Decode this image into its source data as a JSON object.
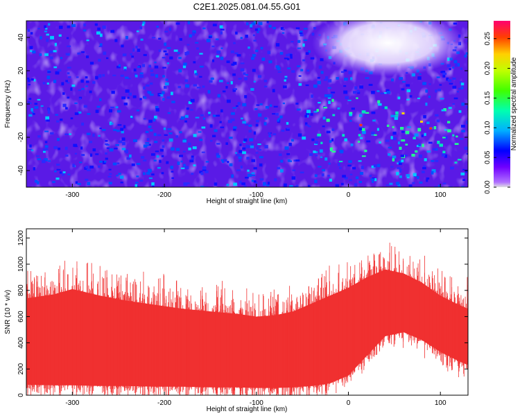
{
  "title": "C2E1.2025.081.04.55.G01",
  "chart_data": [
    {
      "type": "heatmap",
      "xlabel": "Height of straight line (km)",
      "ylabel": "Frequency (Hz)",
      "xlim": [
        -350,
        130
      ],
      "ylim": [
        -50,
        50
      ],
      "xticks": [
        -300,
        -200,
        -100,
        0,
        100
      ],
      "yticks": [
        -40,
        -20,
        0,
        20,
        40
      ],
      "colorbar": {
        "label": "Normalized spectral amplitude",
        "range": [
          0,
          0.28
        ],
        "ticks": [
          0.0,
          0.05,
          0.1,
          0.15,
          0.2,
          0.25
        ],
        "colors": [
          "#e0e0e0",
          "#8000ff",
          "#0000ff",
          "#00c0ff",
          "#00ff80",
          "#80ff00",
          "#ffff00",
          "#ff8000",
          "#ff0000",
          "#ff0080"
        ]
      }
    },
    {
      "type": "area",
      "xlabel": "Height of straight line (km)",
      "ylabel": "SNR (10 * v/v)",
      "xlim": [
        -350,
        130
      ],
      "ylim": [
        0,
        1270
      ],
      "xticks": [
        -300,
        -200,
        -100,
        0,
        100
      ],
      "yticks": [
        0,
        200,
        400,
        600,
        800,
        1000,
        1200
      ],
      "series": [
        {
          "color": "#f03030",
          "x": [
            -350,
            -320,
            -300,
            -270,
            -240,
            -210,
            -180,
            -150,
            -120,
            -100,
            -80,
            -60,
            -40,
            -20,
            0,
            20,
            40,
            60,
            80,
            100,
            120,
            130
          ],
          "upper": [
            740,
            770,
            810,
            760,
            720,
            690,
            660,
            640,
            620,
            600,
            610,
            640,
            700,
            760,
            820,
            900,
            960,
            930,
            860,
            760,
            690,
            660
          ],
          "lower": [
            80,
            75,
            75,
            70,
            70,
            65,
            65,
            60,
            60,
            55,
            55,
            60,
            70,
            90,
            150,
            300,
            450,
            480,
            420,
            330,
            260,
            230
          ]
        }
      ]
    }
  ]
}
